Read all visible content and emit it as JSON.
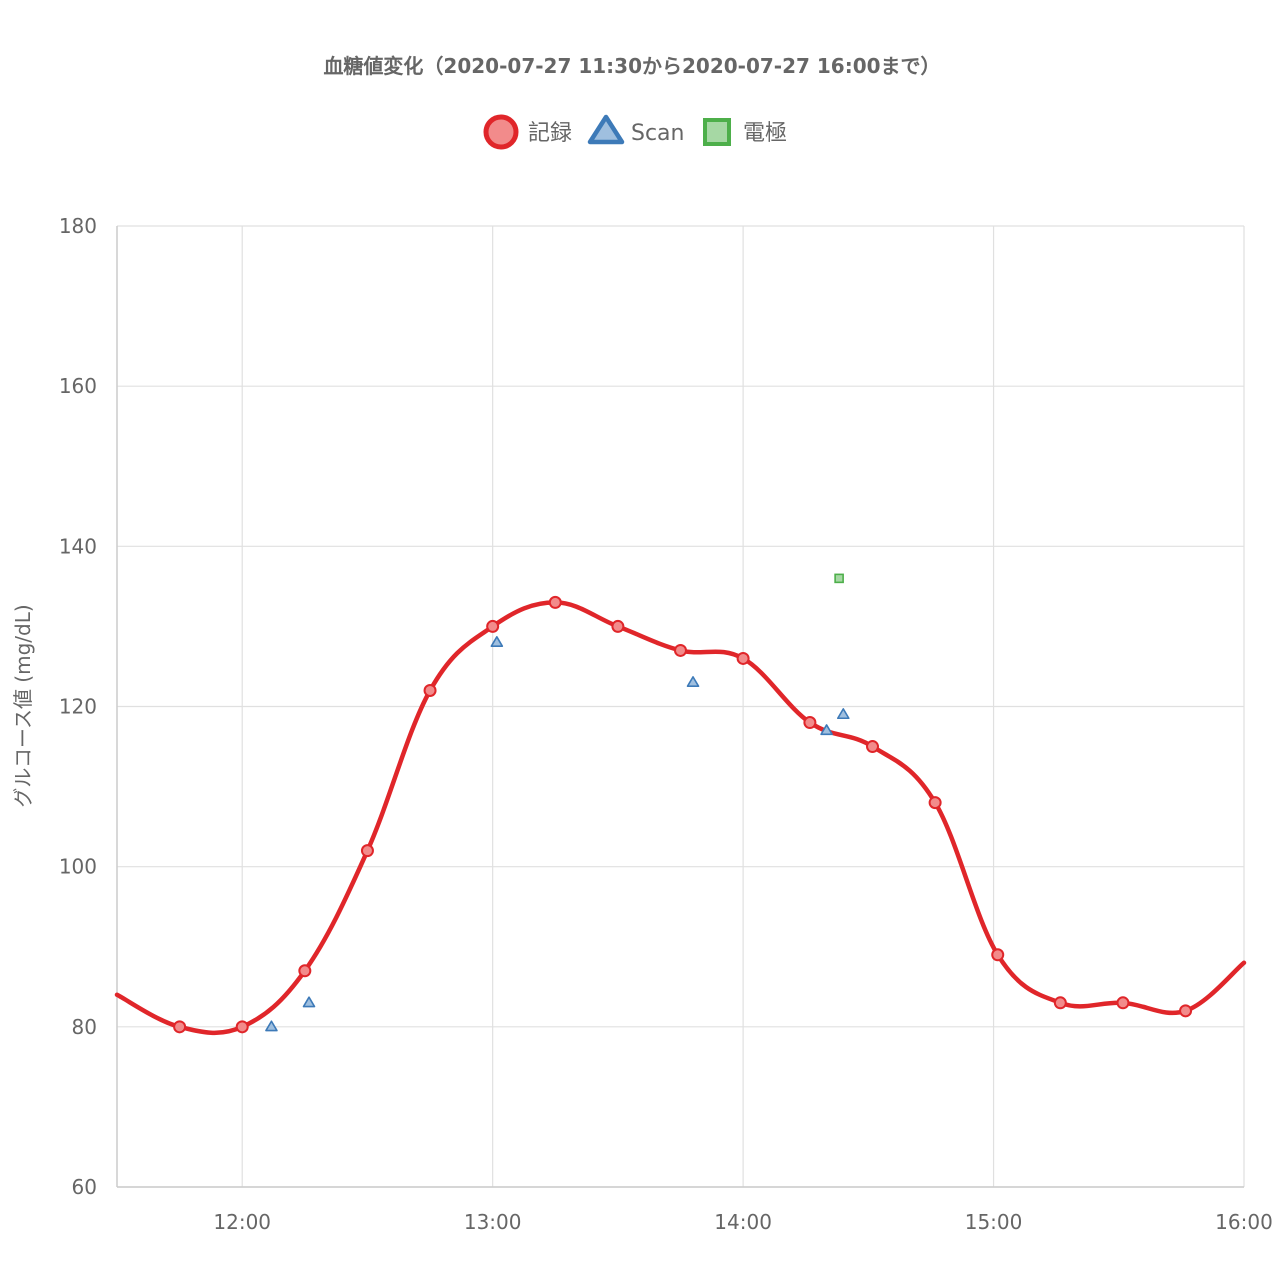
{
  "chart_data": {
    "type": "line",
    "title": "血糖値変化（2020-07-27 11:30から2020-07-27 16:00まで）",
    "ylabel": "グルコース値 (mg/dL)",
    "xlabel": "",
    "xlim": [
      "11:30",
      "16:00"
    ],
    "ylim": [
      60,
      180
    ],
    "y_ticks": [
      60,
      80,
      100,
      120,
      140,
      160,
      180
    ],
    "x_ticks": [
      "12:00",
      "13:00",
      "14:00",
      "15:00",
      "16:00"
    ],
    "grid": true,
    "legend_position": "top-center",
    "series": [
      {
        "name": "記録",
        "marker": "circle",
        "color": "#e0262a",
        "fill": "#f28b8b",
        "smooth": true,
        "points": [
          {
            "x": "11:30",
            "y": 84
          },
          {
            "x": "11:45",
            "y": 80
          },
          {
            "x": "12:00",
            "y": 80
          },
          {
            "x": "12:15",
            "y": 87
          },
          {
            "x": "12:30",
            "y": 102
          },
          {
            "x": "12:45",
            "y": 122
          },
          {
            "x": "13:00",
            "y": 130
          },
          {
            "x": "13:15",
            "y": 133
          },
          {
            "x": "13:30",
            "y": 130
          },
          {
            "x": "13:45",
            "y": 127
          },
          {
            "x": "14:00",
            "y": 126
          },
          {
            "x": "14:16",
            "y": 118
          },
          {
            "x": "14:31",
            "y": 115
          },
          {
            "x": "14:46",
            "y": 108
          },
          {
            "x": "15:01",
            "y": 89
          },
          {
            "x": "15:16",
            "y": 83
          },
          {
            "x": "15:31",
            "y": 83
          },
          {
            "x": "15:46",
            "y": 82
          },
          {
            "x": "16:00",
            "y": 88
          }
        ]
      },
      {
        "name": "Scan",
        "marker": "triangle",
        "color": "#3d7ab8",
        "fill": "#9fbfdf",
        "points": [
          {
            "x": "12:07",
            "y": 80
          },
          {
            "x": "12:16",
            "y": 83
          },
          {
            "x": "13:01",
            "y": 128
          },
          {
            "x": "13:48",
            "y": 123
          },
          {
            "x": "14:20",
            "y": 117
          },
          {
            "x": "14:24",
            "y": 119
          }
        ]
      },
      {
        "name": "電極",
        "marker": "square",
        "color": "#4daf4a",
        "fill": "#a6d8a4",
        "points": [
          {
            "x": "14:23",
            "y": 136
          }
        ]
      }
    ]
  }
}
